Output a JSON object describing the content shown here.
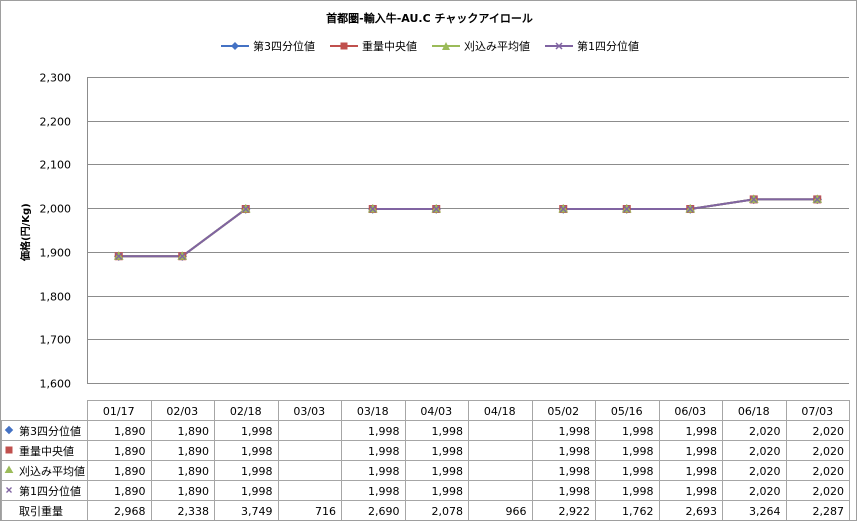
{
  "chart_data": {
    "type": "line",
    "title": "首都圏-輸入牛-AU.C チャックアイロール",
    "ylabel": "価格(円/Kg)",
    "ylim": [
      1600,
      2300
    ],
    "yticks": [
      "1,600",
      "1,700",
      "1,800",
      "1,900",
      "2,000",
      "2,100",
      "2,200",
      "2,300"
    ],
    "categories": [
      "01/17",
      "02/03",
      "02/18",
      "03/03",
      "03/18",
      "04/03",
      "04/18",
      "05/02",
      "05/16",
      "06/03",
      "06/18",
      "07/03"
    ],
    "series": [
      {
        "name": "第3四分位値",
        "color": "#4472c4",
        "marker": "diamond",
        "values": [
          1890,
          1890,
          1998,
          null,
          1998,
          1998,
          null,
          1998,
          1998,
          1998,
          2020,
          2020
        ]
      },
      {
        "name": "重量中央値",
        "color": "#c0504d",
        "marker": "square",
        "values": [
          1890,
          1890,
          1998,
          null,
          1998,
          1998,
          null,
          1998,
          1998,
          1998,
          2020,
          2020
        ]
      },
      {
        "name": "刈込み平均値",
        "color": "#9bbb59",
        "marker": "triangle",
        "values": [
          1890,
          1890,
          1998,
          null,
          1998,
          1998,
          null,
          1998,
          1998,
          1998,
          2020,
          2020
        ]
      },
      {
        "name": "第1四分位値",
        "color": "#8064a2",
        "marker": "x",
        "values": [
          1890,
          1890,
          1998,
          null,
          1998,
          1998,
          null,
          1998,
          1998,
          1998,
          2020,
          2020
        ]
      }
    ],
    "grid": true,
    "legend_position": "top",
    "table": {
      "rows": [
        {
          "label": "第3四分位値",
          "marker": "diamond",
          "color": "#4472c4",
          "cells": [
            "1,890",
            "1,890",
            "1,998",
            "",
            "1,998",
            "1,998",
            "",
            "1,998",
            "1,998",
            "1,998",
            "2,020",
            "2,020"
          ]
        },
        {
          "label": "重量中央値",
          "marker": "square",
          "color": "#c0504d",
          "cells": [
            "1,890",
            "1,890",
            "1,998",
            "",
            "1,998",
            "1,998",
            "",
            "1,998",
            "1,998",
            "1,998",
            "2,020",
            "2,020"
          ]
        },
        {
          "label": "刈込み平均値",
          "marker": "triangle",
          "color": "#9bbb59",
          "cells": [
            "1,890",
            "1,890",
            "1,998",
            "",
            "1,998",
            "1,998",
            "",
            "1,998",
            "1,998",
            "1,998",
            "2,020",
            "2,020"
          ]
        },
        {
          "label": "第1四分位値",
          "marker": "x",
          "color": "#8064a2",
          "cells": [
            "1,890",
            "1,890",
            "1,998",
            "",
            "1,998",
            "1,998",
            "",
            "1,998",
            "1,998",
            "1,998",
            "2,020",
            "2,020"
          ]
        },
        {
          "label": "取引重量",
          "marker": "",
          "color": "",
          "cells": [
            "2,968",
            "2,338",
            "3,749",
            "716",
            "2,690",
            "2,078",
            "966",
            "2,922",
            "1,762",
            "2,693",
            "3,264",
            "2,287"
          ]
        }
      ]
    }
  }
}
